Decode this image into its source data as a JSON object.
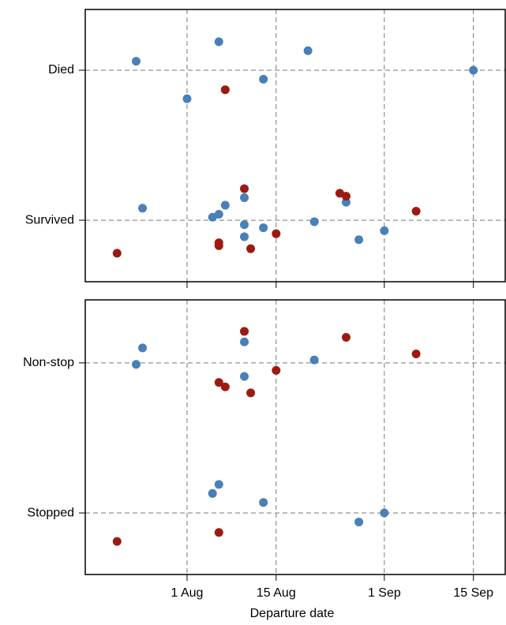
{
  "chart_data": [
    {
      "type": "scatter",
      "xlim": [
        "16 Jul",
        "20 Sep"
      ],
      "ylim": [
        -0.41,
        1.405
      ],
      "yticks": [
        {
          "value": 0,
          "label": "Survived"
        },
        {
          "value": 1,
          "label": "Died"
        }
      ],
      "grid": true,
      "series": [
        {
          "color": "#4a7fb8",
          "x": [
            "24 Jul",
            "6 Aug",
            "20 Aug",
            "15 Sep",
            "13 Aug",
            "1 Aug",
            "25 Jul",
            "7 Aug",
            "10 Aug",
            "26 Aug",
            "5 Aug",
            "6 Aug",
            "10 Aug",
            "13 Aug",
            "21 Aug",
            "10 Aug",
            "28 Aug",
            "1 Sep"
          ],
          "values": [
            1.06,
            1.19,
            1.13,
            1.0,
            0.94,
            0.81,
            0.08,
            0.1,
            0.15,
            0.12,
            0.02,
            0.04,
            -0.03,
            -0.05,
            -0.01,
            -0.11,
            -0.13,
            -0.07
          ]
        },
        {
          "color": "#9b1b12",
          "x": [
            "7 Aug",
            "10 Aug",
            "25 Aug",
            "26 Aug",
            "6 Sep",
            "6 Aug",
            "6 Aug",
            "15 Aug",
            "11 Aug",
            "21 Jul"
          ],
          "values": [
            0.87,
            0.21,
            0.18,
            0.16,
            0.06,
            -0.15,
            -0.17,
            -0.09,
            -0.19,
            -0.22
          ]
        }
      ]
    },
    {
      "type": "scatter",
      "xlim": [
        "16 Jul",
        "20 Sep"
      ],
      "xticks": [
        "1 Aug",
        "15 Aug",
        "1 Sep",
        "15 Sep"
      ],
      "xlabel": "Departure date",
      "ylim": [
        -0.41,
        1.42
      ],
      "yticks": [
        {
          "value": 0,
          "label": "Stopped"
        },
        {
          "value": 1,
          "label": "Non-stop"
        }
      ],
      "grid": true,
      "series": [
        {
          "color": "#4a7fb8",
          "x": [
            "25 Jul",
            "24 Jul",
            "10 Aug",
            "10 Aug",
            "21 Aug",
            "6 Aug",
            "5 Aug",
            "13 Aug",
            "28 Aug",
            "1 Sep"
          ],
          "values": [
            1.1,
            0.99,
            1.14,
            0.91,
            1.02,
            0.19,
            0.13,
            0.07,
            -0.06,
            0.0
          ]
        },
        {
          "color": "#9b1b12",
          "x": [
            "10 Aug",
            "26 Aug",
            "6 Sep",
            "15 Aug",
            "6 Aug",
            "7 Aug",
            "11 Aug",
            "6 Aug",
            "21 Jul"
          ],
          "values": [
            1.21,
            1.17,
            1.06,
            0.95,
            0.87,
            0.84,
            0.8,
            -0.13,
            -0.19
          ]
        }
      ]
    }
  ]
}
